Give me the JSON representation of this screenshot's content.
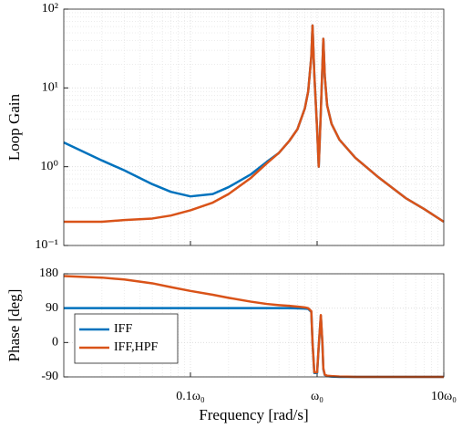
{
  "chart_data": [
    {
      "type": "line",
      "ylabel": "Loop Gain",
      "log_x": true,
      "log_y": true,
      "grid": true,
      "xlim": [
        0.01,
        10
      ],
      "xticks": [
        0.1,
        1
      ],
      "ylim": [
        0.1,
        100
      ],
      "yticks": [
        {
          "value": 0.1,
          "label": "10⁻¹"
        },
        {
          "value": 1,
          "label": "10⁰"
        },
        {
          "value": 10,
          "label": "10¹"
        },
        {
          "value": 100,
          "label": "10²"
        }
      ],
      "x": [
        0.01,
        0.02,
        0.03,
        0.05,
        0.07,
        0.1,
        0.15,
        0.2,
        0.3,
        0.4,
        0.5,
        0.6,
        0.7,
        0.8,
        0.85,
        0.9,
        0.92,
        0.95,
        1.0,
        1.03,
        1.07,
        1.1,
        1.12,
        1.15,
        1.2,
        1.3,
        1.5,
        2,
        3,
        5,
        7,
        10
      ],
      "series": [
        {
          "color": "#0072BD",
          "values": [
            2.03,
            1.2,
            0.9,
            0.6,
            0.48,
            0.42,
            0.45,
            0.55,
            0.8,
            1.15,
            1.5,
            2.1,
            3.0,
            5.5,
            9,
            25,
            62,
            15,
            3,
            1.0,
            5,
            18,
            42,
            14,
            6,
            3.5,
            2.2,
            1.3,
            0.75,
            0.4,
            0.29,
            0.2
          ]
        },
        {
          "color": "#D95319",
          "values": [
            0.2,
            0.2,
            0.21,
            0.22,
            0.24,
            0.28,
            0.35,
            0.45,
            0.72,
            1.1,
            1.5,
            2.1,
            3.0,
            5.5,
            9,
            25,
            62,
            15,
            3,
            1.0,
            5,
            18,
            42,
            14,
            6,
            3.5,
            2.2,
            1.3,
            0.75,
            0.4,
            0.29,
            0.2
          ]
        }
      ]
    },
    {
      "type": "line",
      "ylabel": "Phase [deg]",
      "xlabel": "Frequency [rad/s]",
      "log_x": true,
      "log_y": false,
      "grid": true,
      "legend": "lower left",
      "xlim": [
        0.01,
        10
      ],
      "xticks": [
        {
          "value": 0.1,
          "label": "0.1ω₀"
        },
        {
          "value": 1,
          "label": "ω₀"
        },
        {
          "value": 10,
          "label": "10ω₀"
        }
      ],
      "ylim": [
        -90,
        180
      ],
      "yticks": [
        -90,
        0,
        90,
        180
      ],
      "x": [
        0.01,
        0.02,
        0.03,
        0.05,
        0.07,
        0.1,
        0.15,
        0.2,
        0.3,
        0.4,
        0.5,
        0.6,
        0.7,
        0.8,
        0.85,
        0.9,
        0.92,
        0.95,
        1.0,
        1.03,
        1.07,
        1.1,
        1.12,
        1.15,
        1.2,
        1.3,
        1.5,
        2,
        3,
        5,
        7,
        10
      ],
      "series": [
        {
          "name": "IFF",
          "color": "#0072BD",
          "values": [
            90,
            90,
            90,
            90,
            90,
            90,
            90,
            90,
            90,
            90,
            90,
            90,
            89.5,
            89,
            88,
            80,
            0,
            -80,
            -80,
            -10,
            70,
            0,
            -70,
            -85,
            -88,
            -89,
            -90,
            -90,
            -90,
            -90,
            -90,
            -90
          ]
        },
        {
          "name": "IFF,HPF",
          "color": "#D95319",
          "values": [
            174,
            170,
            165,
            155,
            145,
            135,
            125,
            117,
            107,
            101,
            98,
            96,
            94,
            92,
            90,
            82,
            0,
            -78,
            -78,
            -8,
            72,
            2,
            -68,
            -84,
            -87,
            -88,
            -89,
            -90,
            -90,
            -90,
            -90,
            -90
          ]
        }
      ]
    }
  ]
}
